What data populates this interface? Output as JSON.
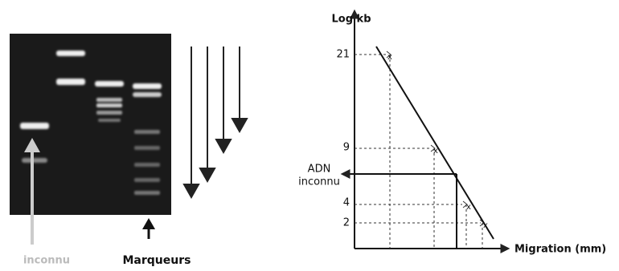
{
  "gel": {
    "label_unknown": "inconnu",
    "label_markers": "Marqueurs"
  },
  "graph": {
    "y_axis_label": "Log kb",
    "x_axis_label": "Migration (mm)",
    "tick_labels": [
      "21",
      "9",
      "4",
      "2"
    ],
    "unknown_label": [
      "ADN",
      "inconnu"
    ]
  }
}
